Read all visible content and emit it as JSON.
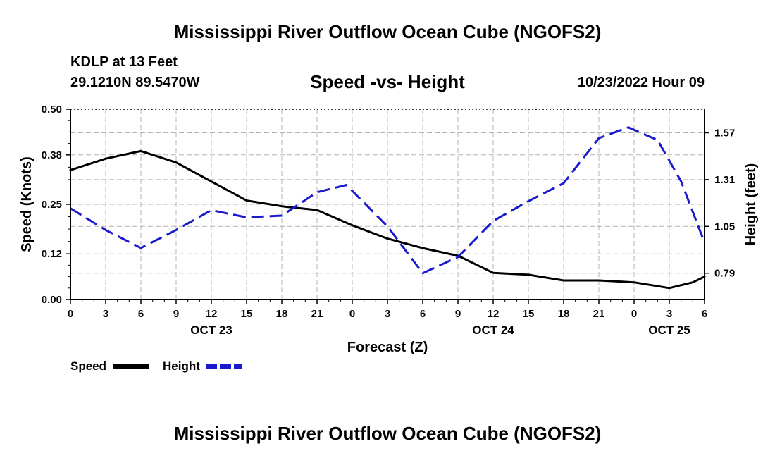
{
  "header": {
    "title": "Mississippi River Outflow Ocean Cube (NGOFS2)",
    "station": "KDLP at 13 Feet",
    "coordinates": "29.1210N  89.5470W",
    "subtitle": "Speed -vs- Height",
    "datetime": "10/23/2022 Hour 09"
  },
  "footer": {
    "title": "Mississippi River Outflow Ocean Cube (NGOFS2)"
  },
  "legend": {
    "speed_label": "Speed",
    "height_label": "Height"
  },
  "chart_data": {
    "type": "line",
    "title": "Speed -vs- Height",
    "xlabel": "Forecast (Z)",
    "ylabel": "Speed (Knots)",
    "y2label": "Height (feet)",
    "xlim": [
      0,
      54
    ],
    "ylim": [
      0,
      0.5
    ],
    "y2lim": [
      0.644,
      1.701
    ],
    "x_ticks": [
      0,
      3,
      6,
      9,
      12,
      15,
      18,
      21,
      24,
      27,
      30,
      33,
      36,
      39,
      42,
      45,
      48,
      51,
      54
    ],
    "x_tick_labels": [
      "0",
      "3",
      "6",
      "9",
      "12",
      "15",
      "18",
      "21",
      "0",
      "3",
      "6",
      "9",
      "12",
      "15",
      "18",
      "21",
      "0",
      "3",
      "6"
    ],
    "date_labels": [
      {
        "x": 12,
        "label": "OCT 23"
      },
      {
        "x": 36,
        "label": "OCT 24"
      },
      {
        "x": 51,
        "label": "OCT 25"
      }
    ],
    "y_ticks": [
      0.0,
      0.12,
      0.25,
      0.38,
      0.5
    ],
    "y_tick_labels": [
      "0.00",
      "0.12",
      "0.25",
      "0.38",
      "0.50"
    ],
    "y2_ticks": [
      0.79,
      1.05,
      1.31,
      1.57
    ],
    "y2_tick_labels": [
      "0.79",
      "1.05",
      "1.31",
      "1.57"
    ],
    "grid": true,
    "legend_position": "bottom-left",
    "series": [
      {
        "name": "Speed",
        "axis": "left",
        "color": "#000000",
        "dash": "solid",
        "x": [
          0,
          3,
          6,
          9,
          12,
          15,
          18,
          21,
          24,
          27,
          30,
          33,
          36,
          39,
          42,
          45,
          48,
          51,
          53,
          54
        ],
        "values": [
          0.34,
          0.37,
          0.39,
          0.36,
          0.31,
          0.26,
          0.245,
          0.235,
          0.195,
          0.16,
          0.135,
          0.115,
          0.07,
          0.065,
          0.05,
          0.05,
          0.045,
          0.03,
          0.045,
          0.06
        ]
      },
      {
        "name": "Height",
        "axis": "right",
        "color": "#1a1acd",
        "dash": "dashed",
        "x": [
          0,
          3,
          6,
          9,
          12,
          15,
          18,
          21,
          23.5,
          27,
          30,
          33,
          36,
          39,
          42,
          45,
          47.5,
          50,
          52,
          54
        ],
        "values": [
          1.15,
          1.03,
          0.93,
          1.03,
          1.14,
          1.1,
          1.11,
          1.24,
          1.28,
          1.05,
          0.79,
          0.88,
          1.08,
          1.19,
          1.29,
          1.54,
          1.6,
          1.53,
          1.3,
          0.96
        ]
      }
    ]
  }
}
